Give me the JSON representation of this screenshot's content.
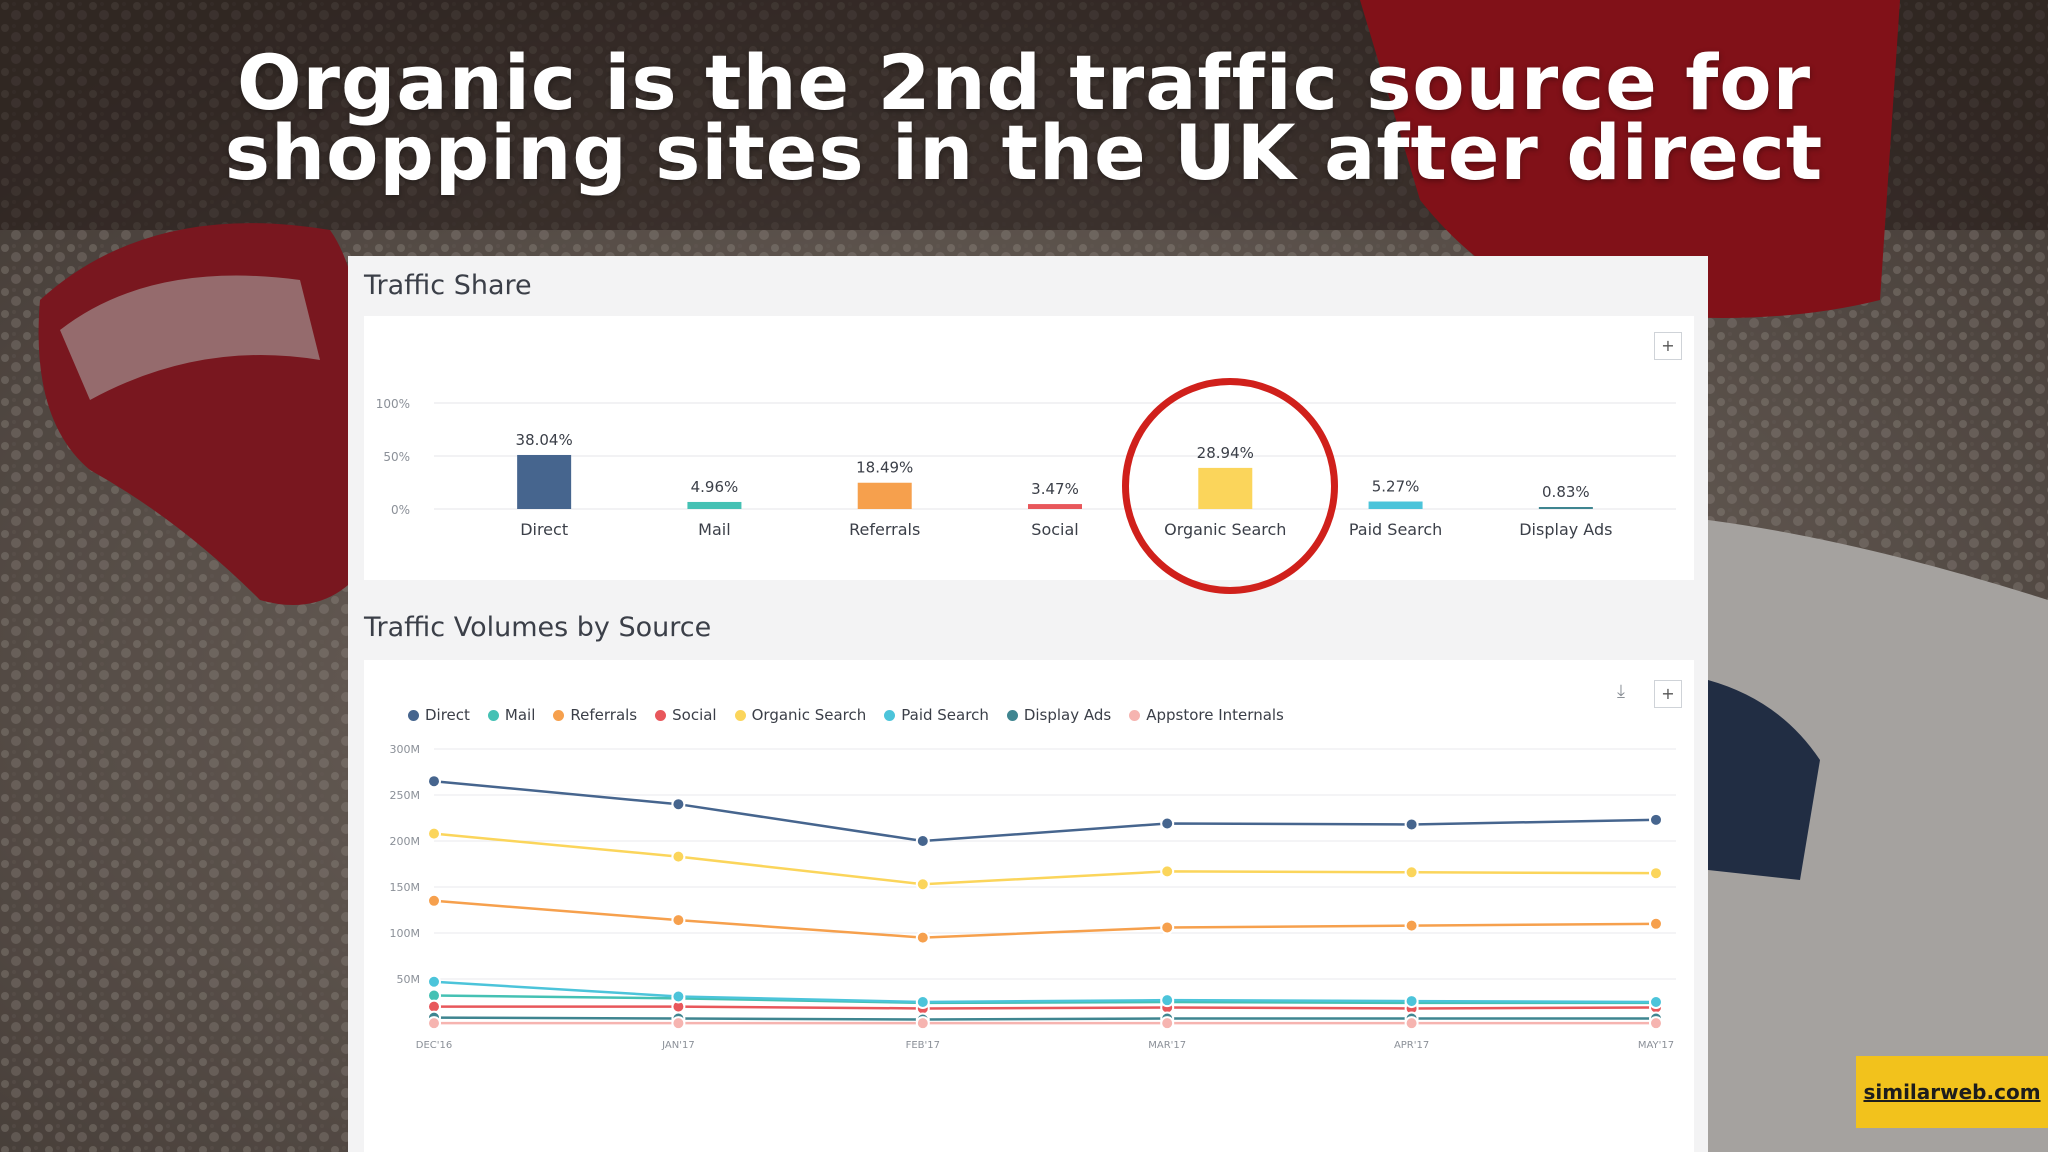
{
  "headline": {
    "line1": "Organic is the 2nd traffic source for",
    "line2": "shopping sites in the UK after direct"
  },
  "badge": {
    "label": "similarweb.com"
  },
  "traffic_share": {
    "title": "Traffic Share",
    "expand_label": "+"
  },
  "traffic_volumes": {
    "title": "Traffic Volumes by Source",
    "expand_label": "+",
    "download_icon": "download-icon"
  },
  "colors": {
    "Direct": "#46658e",
    "Mail": "#45c1b4",
    "Referrals": "#f6a04d",
    "Social": "#e8575b",
    "Organic Search": "#fbd55b",
    "Paid Search": "#4cc4da",
    "Display Ads": "#3f8590",
    "Appstore Internals": "#f6b4b0",
    "highlight": "#d0201b",
    "badge": "#f2c21c"
  },
  "chart_data": [
    {
      "type": "bar",
      "title": "Traffic Share",
      "categories": [
        "Direct",
        "Mail",
        "Referrals",
        "Social",
        "Organic Search",
        "Paid Search",
        "Display Ads"
      ],
      "values": [
        38.04,
        4.96,
        18.49,
        3.47,
        28.94,
        5.27,
        0.83
      ],
      "data_labels": [
        "38.04%",
        "4.96%",
        "18.49%",
        "3.47%",
        "28.94%",
        "5.27%",
        "0.83%"
      ],
      "y_ticks": [
        "100%",
        "50%",
        "0%"
      ],
      "ylim": [
        0,
        100
      ],
      "grid": true,
      "highlighted_category": "Organic Search"
    },
    {
      "type": "line",
      "title": "Traffic Volumes by Source",
      "x": [
        "DEC'16",
        "JAN'17",
        "FEB'17",
        "MAR'17",
        "APR'17",
        "MAY'17"
      ],
      "y_ticks": [
        "300M",
        "250M",
        "200M",
        "150M",
        "100M",
        "50M"
      ],
      "ylim": [
        0,
        300
      ],
      "grid": true,
      "legend_position": "top-left",
      "series": [
        {
          "name": "Direct",
          "values": [
            265,
            240,
            200,
            219,
            218,
            223
          ]
        },
        {
          "name": "Mail",
          "values": [
            32,
            29,
            24,
            25,
            24,
            24
          ]
        },
        {
          "name": "Referrals",
          "values": [
            135,
            114,
            95,
            106,
            108,
            110
          ]
        },
        {
          "name": "Social",
          "values": [
            20,
            20,
            18,
            19,
            18,
            19
          ]
        },
        {
          "name": "Organic Search",
          "values": [
            208,
            183,
            153,
            167,
            166,
            165
          ]
        },
        {
          "name": "Paid Search",
          "values": [
            47,
            31,
            25,
            27,
            26,
            25
          ]
        },
        {
          "name": "Display Ads",
          "values": [
            8,
            7,
            6,
            7,
            7,
            7
          ]
        },
        {
          "name": "Appstore Internals",
          "values": [
            2,
            2,
            2,
            2,
            2,
            2
          ]
        }
      ]
    }
  ]
}
